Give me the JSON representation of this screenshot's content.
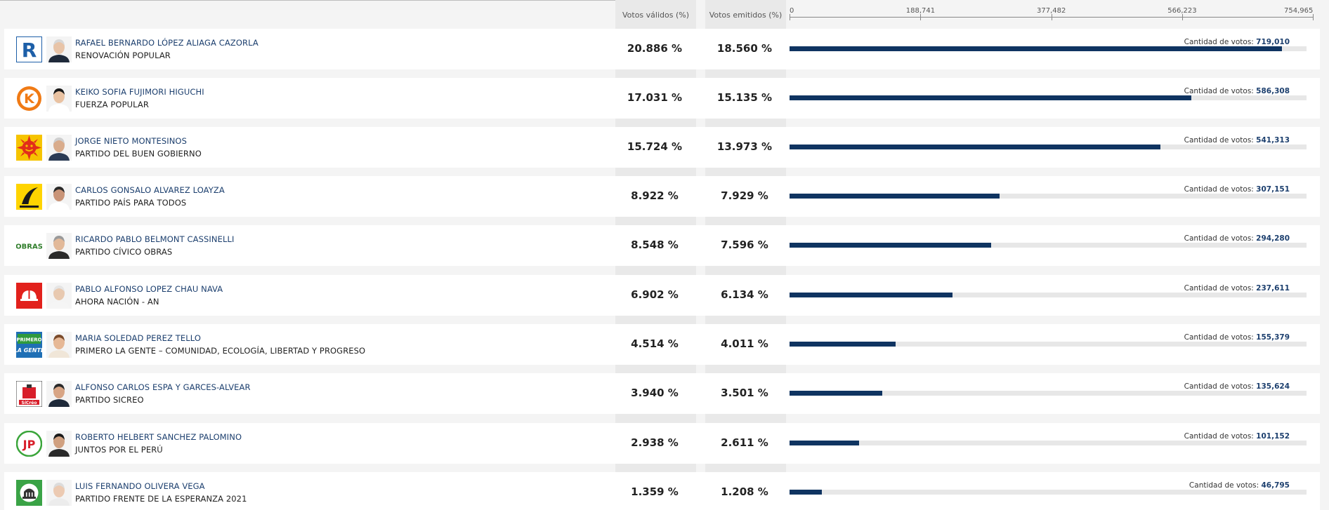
{
  "columns": {
    "valid": "Votos válidos (%)",
    "emitted": "Votos emitidos (%)"
  },
  "votes_label": "Cantidad de votos:",
  "colors": {
    "bar": "#0f3461",
    "track": "#e7e7e7",
    "name": "#1c3f6e"
  },
  "chart_data": {
    "type": "bar",
    "orientation": "horizontal",
    "xlim": [
      0,
      754965
    ],
    "ticks": [
      "0",
      "188,741",
      "377,482",
      "566,223",
      "754,965"
    ],
    "categories": [
      "RAFAEL BERNARDO LÓPEZ ALIAGA CAZORLA",
      "KEIKO SOFIA FUJIMORI HIGUCHI",
      "JORGE NIETO MONTESINOS",
      "CARLOS GONSALO ALVAREZ LOAYZA",
      "RICARDO PABLO BELMONT CASSINELLI",
      "PABLO ALFONSO LOPEZ CHAU NAVA",
      "MARIA SOLEDAD PEREZ TELLO",
      "ALFONSO CARLOS ESPA Y GARCES-ALVEAR",
      "ROBERTO HELBERT SANCHEZ PALOMINO",
      "LUIS FERNANDO OLIVERA VEGA"
    ],
    "values": [
      719010,
      586308,
      541313,
      307151,
      294280,
      237611,
      155379,
      135624,
      101152,
      46795
    ]
  },
  "candidates": [
    {
      "name": "RAFAEL BERNARDO LÓPEZ ALIAGA CAZORLA",
      "party": "RENOVACIÓN POPULAR",
      "valid": "20.886 %",
      "emitted": "18.560 %",
      "votes": "719,010",
      "logo": "renovacion-popular-logo"
    },
    {
      "name": "KEIKO SOFIA FUJIMORI HIGUCHI",
      "party": "FUERZA POPULAR",
      "valid": "17.031 %",
      "emitted": "15.135 %",
      "votes": "586,308",
      "logo": "fuerza-popular-logo"
    },
    {
      "name": "JORGE NIETO MONTESINOS",
      "party": "PARTIDO DEL BUEN GOBIERNO",
      "valid": "15.724 %",
      "emitted": "13.973 %",
      "votes": "541,313",
      "logo": "buen-gobierno-logo"
    },
    {
      "name": "CARLOS GONSALO ALVAREZ LOAYZA",
      "party": "PARTIDO PAÍS PARA TODOS",
      "valid": "8.922 %",
      "emitted": "7.929 %",
      "votes": "307,151",
      "logo": "pais-para-todos-logo"
    },
    {
      "name": "RICARDO PABLO BELMONT CASSINELLI",
      "party": "PARTIDO CÍVICO OBRAS",
      "valid": "8.548 %",
      "emitted": "7.596 %",
      "votes": "294,280",
      "logo": "obras-logo",
      "logo_text": "OBRAS"
    },
    {
      "name": "PABLO ALFONSO LOPEZ CHAU NAVA",
      "party": "AHORA NACIÓN - AN",
      "valid": "6.902 %",
      "emitted": "6.134 %",
      "votes": "237,611",
      "logo": "ahora-nacion-logo"
    },
    {
      "name": "MARIA SOLEDAD PEREZ TELLO",
      "party": "PRIMERO LA GENTE – COMUNIDAD, ECOLOGÍA, LIBERTAD Y PROGRESO",
      "valid": "4.514 %",
      "emitted": "4.011 %",
      "votes": "155,379",
      "logo": "primero-la-gente-logo"
    },
    {
      "name": "ALFONSO CARLOS ESPA Y GARCES-ALVEAR",
      "party": "PARTIDO SICREO",
      "valid": "3.940 %",
      "emitted": "3.501 %",
      "votes": "135,624",
      "logo": "sicreo-logo"
    },
    {
      "name": "ROBERTO HELBERT SANCHEZ PALOMINO",
      "party": "JUNTOS POR EL PERÚ",
      "valid": "2.938 %",
      "emitted": "2.611 %",
      "votes": "101,152",
      "logo": "juntos-por-el-peru-logo"
    },
    {
      "name": "LUIS FERNANDO OLIVERA VEGA",
      "party": "PARTIDO FRENTE DE LA ESPERANZA 2021",
      "valid": "1.359 %",
      "emitted": "1.208 %",
      "votes": "46,795",
      "logo": "frente-esperanza-logo"
    }
  ]
}
